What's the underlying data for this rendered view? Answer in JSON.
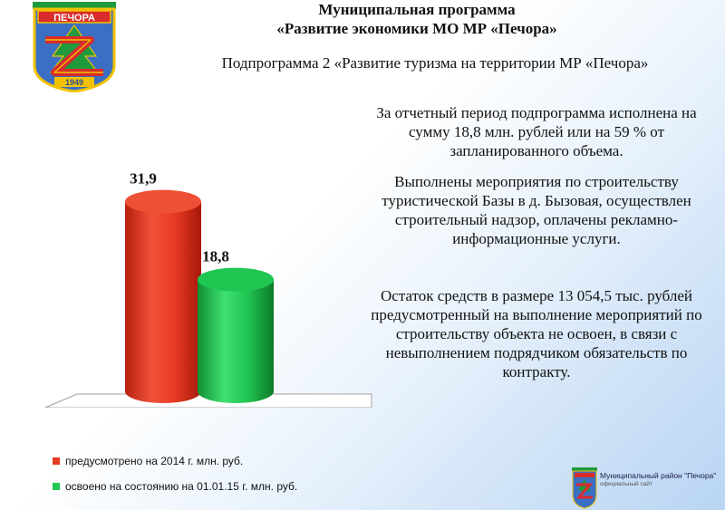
{
  "header": {
    "title_line1": "Муниципальная программа",
    "title_line2": "«Развитие экономики МО МР «Печора»",
    "subtitle": "Подпрограмма 2 «Развитие туризма на территории МР «Печора»"
  },
  "crest": {
    "name_text": "ПЕЧОРА",
    "year_text": "1949",
    "colors": {
      "blue": "#3a6fc4",
      "red": "#d92b2b",
      "green": "#1f9a3c",
      "gold": "#f2c200"
    }
  },
  "chart_data": {
    "type": "bar",
    "style": "3d-cylinder",
    "categories": [
      ""
    ],
    "series": [
      {
        "name": "предусмотрено на 2014 г. млн. руб.",
        "values": [
          31.9
        ],
        "label": "31,9",
        "color": "#e83a24"
      },
      {
        "name": "освоено на состоянию на 01.01.15 г. млн. руб.",
        "values": [
          18.8
        ],
        "label": "18,8",
        "color": "#22c653"
      }
    ],
    "ylim": [
      0,
      40
    ],
    "grid": false,
    "legend_position": "bottom-left"
  },
  "body": {
    "p1": "За отчетный период  подпрограмма исполнена на сумму 18,8 млн. рублей или на  59 % от запланированного объема.",
    "p2": "Выполнены мероприятия по строительству туристической Базы в д. Бызовая, осуществлен строительный надзор, оплачены рекламно-информационные услуги.",
    "p3": "Остаток средств в размере 13 054,5 тыс. рублей предусмотренный на выполнение мероприятий по строительству объекта не освоен, в связи с  невыполнением подрядчиком обязательств по контракту."
  },
  "footer": {
    "line1": "Муниципальный район \"Печора\"",
    "line2": "официальный сайт"
  }
}
